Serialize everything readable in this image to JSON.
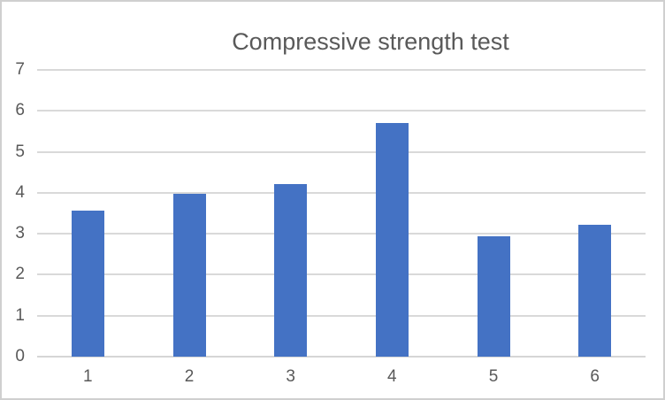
{
  "chart_data": {
    "type": "bar",
    "title": "Compressive strength test",
    "categories": [
      "1",
      "2",
      "3",
      "4",
      "5",
      "6"
    ],
    "values": [
      3.57,
      3.97,
      4.22,
      5.71,
      2.93,
      3.21
    ],
    "xlabel": "",
    "ylabel": "",
    "ylim": [
      0,
      7
    ],
    "yticks": [
      0,
      1,
      2,
      3,
      4,
      5,
      6,
      7
    ],
    "grid": true,
    "legend_position": "none",
    "bar_color": "#4472c4",
    "gridline_color": "#d9d9d9",
    "axis_line_color": "#d6d6d6",
    "text_color": "#595959",
    "background_color": "#ffffff",
    "border_color": "#cfcfcf"
  }
}
